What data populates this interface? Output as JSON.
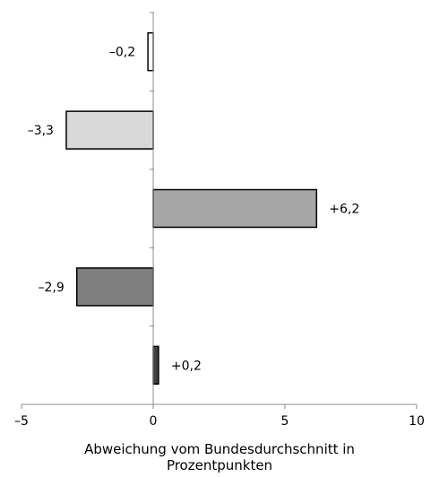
{
  "chart_data": {
    "type": "bar",
    "orientation": "horizontal",
    "categories": [
      "",
      "",
      "",
      "",
      ""
    ],
    "values": [
      -0.2,
      -3.3,
      6.2,
      -2.9,
      0.2
    ],
    "data_labels": [
      "–0,2",
      "–3,3",
      "+6,2",
      "–2,9",
      "+0,2"
    ],
    "bar_colors": [
      "#ffffff",
      "#d9d9d9",
      "#a6a6a6",
      "#7f7f7f",
      "#404040"
    ],
    "xlim": [
      -5,
      10
    ],
    "x_ticks": [
      -5,
      0,
      5,
      10
    ],
    "x_tick_labels": [
      "–5",
      "0",
      "5",
      "10"
    ],
    "xlabel": "Abweichung vom Bundesdurchschnitt in Prozentpunkten",
    "xlabel_lines": [
      "Abweichung vom Bundesdurchschnitt in",
      "Prozentpunkten"
    ],
    "grid": false,
    "legend": "none"
  }
}
